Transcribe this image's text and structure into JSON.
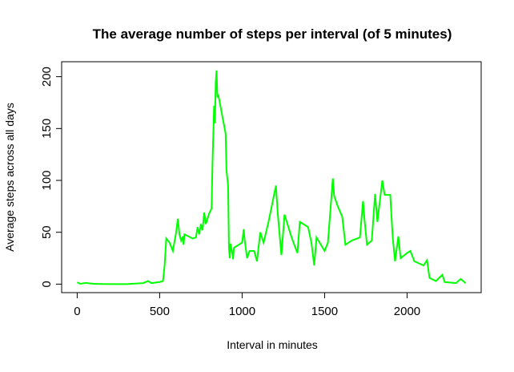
{
  "chart_data": {
    "type": "line",
    "title": "The average number of steps per interval (of 5 minutes)",
    "x_label": "Interval in minutes",
    "y_label": "Average steps across all days",
    "x": [
      0,
      20,
      50,
      100,
      200,
      300,
      400,
      430,
      450,
      500,
      520,
      530,
      540,
      560,
      580,
      600,
      610,
      620,
      630,
      640,
      645,
      650,
      700,
      720,
      730,
      740,
      750,
      760,
      770,
      780,
      800,
      815,
      820,
      830,
      835,
      840,
      845,
      850,
      855,
      900,
      905,
      915,
      920,
      925,
      930,
      940,
      945,
      950,
      1000,
      1010,
      1015,
      1030,
      1045,
      1073,
      1090,
      1110,
      1130,
      1160,
      1205,
      1215,
      1238,
      1257,
      1300,
      1335,
      1350,
      1400,
      1420,
      1437,
      1451,
      1500,
      1520,
      1550,
      1558,
      1580,
      1607,
      1626,
      1665,
      1714,
      1733,
      1743,
      1757,
      1786,
      1806,
      1820,
      1850,
      1864,
      1898,
      1913,
      1927,
      1947,
      1961,
      2000,
      2020,
      2044,
      2100,
      2121,
      2136,
      2175,
      2214,
      2228,
      2296,
      2325,
      2355
    ],
    "series": [
      {
        "name": "Average steps",
        "color": "#00ff00",
        "values": [
          1.7,
          0.3,
          1.2,
          0.3,
          0,
          0,
          1,
          3,
          1,
          2,
          3,
          18,
          44,
          40,
          32,
          50,
          63,
          48,
          42,
          46,
          38,
          48,
          44,
          45,
          55,
          48,
          58,
          52,
          69,
          58,
          68,
          73,
          115,
          172,
          155,
          195,
          206,
          180,
          183,
          145,
          110,
          95,
          35,
          25,
          39,
          30,
          24,
          35,
          40,
          53,
          43,
          25,
          32,
          32,
          22,
          50,
          40,
          60,
          95,
          70,
          28,
          67,
          45,
          30,
          60,
          55,
          40,
          18,
          45,
          32,
          40,
          102,
          85,
          75,
          65,
          38,
          42,
          45,
          80,
          60,
          38,
          42,
          87,
          60,
          100,
          86,
          86,
          45,
          22,
          46,
          25,
          30,
          32,
          22,
          18,
          23,
          6,
          3,
          9,
          2,
          1,
          5,
          1
        ]
      }
    ],
    "xlim": [
      -94.2,
      2449.2
    ],
    "ylim": [
      -8.2,
      214.4
    ],
    "xticks": [
      0,
      500,
      1000,
      1500,
      2000
    ],
    "yticks": [
      0,
      50,
      100,
      150,
      200
    ]
  }
}
